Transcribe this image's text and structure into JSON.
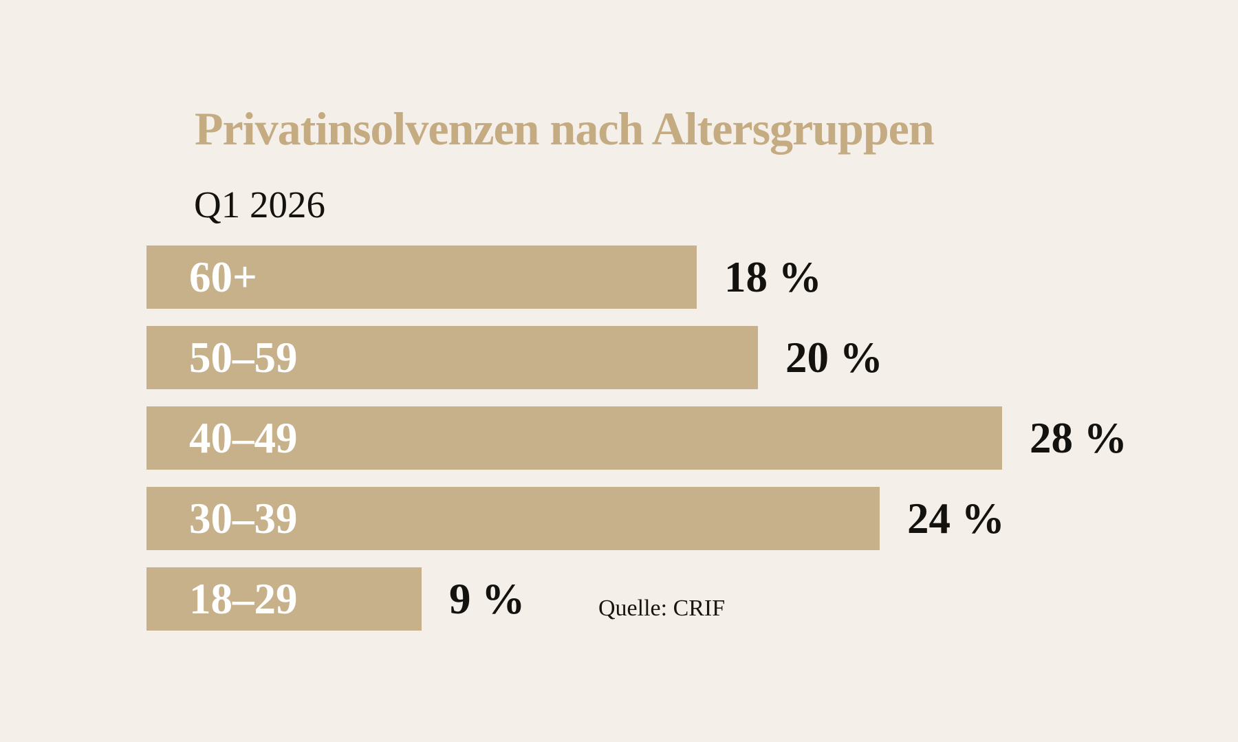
{
  "page": {
    "background_color": "#f4efe8",
    "accent_color": "#c4ab81"
  },
  "header": {
    "title": "Privatinsolvenzen nach Altersgruppen",
    "subtitle": "Q1 2026"
  },
  "chart_data": {
    "type": "bar",
    "orientation": "horizontal",
    "title": "Privatinsolvenzen nach Altersgruppen",
    "subtitle": "Q1 2026",
    "categories": [
      "60+",
      "50–59",
      "40–49",
      "30–39",
      "18–29"
    ],
    "values": [
      18,
      20,
      28,
      24,
      9
    ],
    "value_labels": [
      "18 %",
      "20 %",
      "28 %",
      "24 %",
      "9 %"
    ],
    "unit": "%",
    "xlim": [
      0,
      28
    ],
    "grid": false,
    "legend": false,
    "bar_color": "#c7b18b",
    "category_label_color": "#ffffff",
    "value_label_color": "#14120f"
  },
  "source": {
    "label": "Quelle: CRIF"
  }
}
